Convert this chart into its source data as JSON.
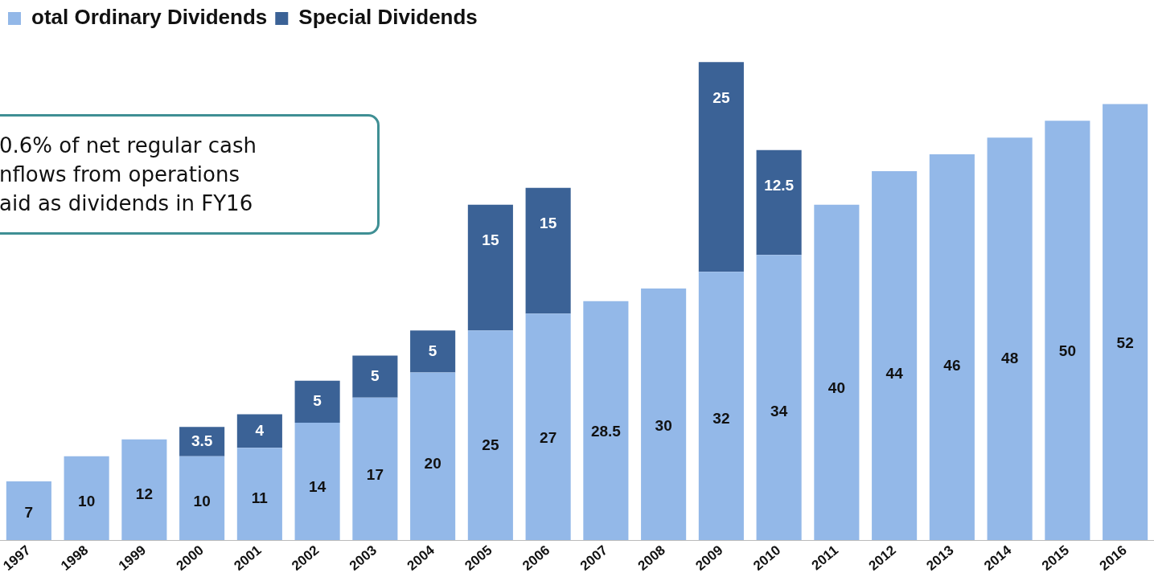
{
  "chart_data": {
    "type": "bar",
    "stacked": true,
    "data_labels": true,
    "legend": "top left",
    "grid": false,
    "categories": [
      "1997",
      "1998",
      "1999",
      "2000",
      "2001",
      "2002",
      "2003",
      "2004",
      "2005",
      "2006",
      "2007",
      "2008",
      "2009",
      "2010",
      "2011",
      "2012",
      "2013",
      "2014",
      "2015",
      "2016"
    ],
    "series": [
      {
        "name": "otal Ordinary Dividends",
        "color": "#93b8e8",
        "values": [
          7,
          10,
          12,
          10,
          11,
          14,
          17,
          20,
          25,
          27,
          28.5,
          30,
          32,
          34,
          40,
          44,
          46,
          48,
          50,
          52
        ]
      },
      {
        "name": "Special Dividends",
        "color": "#3b6296",
        "values": [
          null,
          null,
          null,
          3.5,
          4,
          5,
          5,
          5,
          15,
          15,
          null,
          null,
          25,
          12.5,
          null,
          null,
          null,
          null,
          null,
          null
        ]
      }
    ],
    "annotations": [
      "0.6% of net regular cash\nnflows from operations\naid as dividends in FY16"
    ]
  }
}
